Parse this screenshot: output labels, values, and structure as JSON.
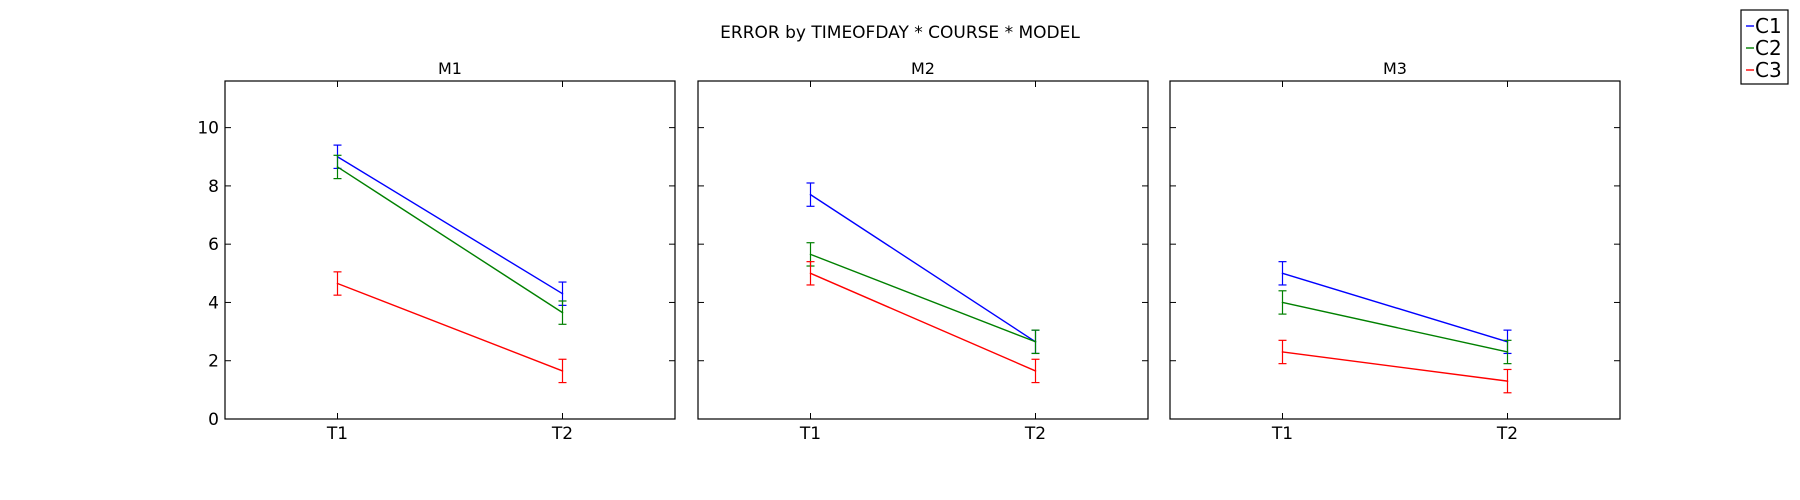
{
  "figure_title": "ERROR by TIMEOFDAY * COURSE * MODEL",
  "chart_data": {
    "type": "line",
    "title": "ERROR by TIMEOFDAY * COURSE * MODEL",
    "categories": [
      "T1",
      "T2"
    ],
    "ylim": [
      0,
      11.6
    ],
    "yticks": [
      "0",
      "2",
      "4",
      "6",
      "8",
      "10"
    ],
    "grid": false,
    "legend_position": "top-right",
    "series_names": [
      "C1",
      "C2",
      "C3"
    ],
    "series_colors": [
      "#0000ff",
      "#008000",
      "#ff0000"
    ],
    "panels": [
      {
        "title": "M1",
        "series": [
          {
            "name": "C1",
            "values": [
              9.0,
              4.3
            ],
            "errors": [
              0.4,
              0.4
            ]
          },
          {
            "name": "C2",
            "values": [
              8.65,
              3.65
            ],
            "errors": [
              0.4,
              0.4
            ]
          },
          {
            "name": "C3",
            "values": [
              4.65,
              1.65
            ],
            "errors": [
              0.4,
              0.4
            ]
          }
        ]
      },
      {
        "title": "M2",
        "series": [
          {
            "name": "C1",
            "values": [
              7.7,
              2.65
            ],
            "errors": [
              0.4,
              0.4
            ]
          },
          {
            "name": "C2",
            "values": [
              5.65,
              2.65
            ],
            "errors": [
              0.4,
              0.4
            ]
          },
          {
            "name": "C3",
            "values": [
              5.0,
              1.65
            ],
            "errors": [
              0.4,
              0.4
            ]
          }
        ]
      },
      {
        "title": "M3",
        "series": [
          {
            "name": "C1",
            "values": [
              5.0,
              2.65
            ],
            "errors": [
              0.4,
              0.4
            ]
          },
          {
            "name": "C2",
            "values": [
              4.0,
              2.3
            ],
            "errors": [
              0.4,
              0.4
            ]
          },
          {
            "name": "C3",
            "values": [
              2.3,
              1.3
            ],
            "errors": [
              0.4,
              0.4
            ]
          }
        ]
      }
    ]
  }
}
